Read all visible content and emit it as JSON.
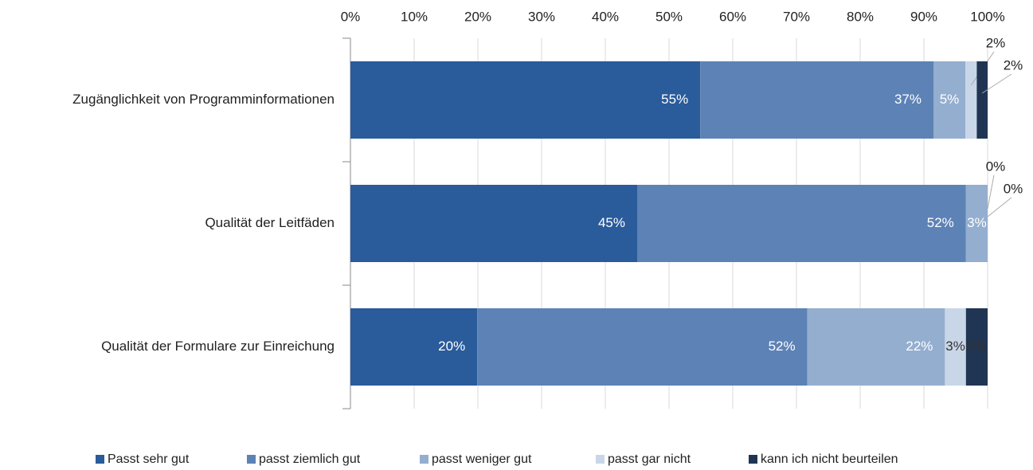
{
  "chart_data": {
    "type": "stacked-barh",
    "categories": [
      "Zugänglichkeit von Programminformationen",
      "Qualität der Leitfäden",
      "Qualität der Formulare zur Einreichung"
    ],
    "series": [
      {
        "name": "Passt sehr gut",
        "color": "#2a5b9b",
        "values": [
          54.9,
          45.0,
          19.9
        ],
        "value_labels": [
          "55%",
          "45%",
          "20%"
        ]
      },
      {
        "name": "passt ziemlich gut",
        "color": "#5d82b6",
        "values": [
          36.6,
          51.6,
          51.8
        ],
        "value_labels": [
          "37%",
          "52%",
          "52%"
        ]
      },
      {
        "name": "passt weniger gut",
        "color": "#94aecf",
        "values": [
          5.0,
          3.4,
          21.6
        ],
        "value_labels": [
          "5%",
          "3%",
          "22%"
        ]
      },
      {
        "name": "passt gar nicht",
        "color": "#c9d6e8",
        "values": [
          1.8,
          0,
          3.3
        ],
        "value_labels": [
          "2%",
          "0%",
          "3%"
        ]
      },
      {
        "name": "kann ich nicht beurteilen",
        "color": "#1f3553",
        "values": [
          1.7,
          0,
          3.4
        ],
        "value_labels": [
          "2%",
          "0%",
          "3%"
        ]
      }
    ],
    "xlim": [
      0,
      100
    ],
    "xticks": [
      {
        "value": 0,
        "label": "0%"
      },
      {
        "value": 10,
        "label": "10%"
      },
      {
        "value": 20,
        "label": "20%"
      },
      {
        "value": 30,
        "label": "30%"
      },
      {
        "value": 40,
        "label": "40%"
      },
      {
        "value": 50,
        "label": "50%"
      },
      {
        "value": 60,
        "label": "60%"
      },
      {
        "value": 70,
        "label": "70%"
      },
      {
        "value": 80,
        "label": "80%"
      },
      {
        "value": 90,
        "label": "90%"
      },
      {
        "value": 100,
        "label": "100%"
      }
    ],
    "grid": true,
    "legend": "bottom"
  }
}
